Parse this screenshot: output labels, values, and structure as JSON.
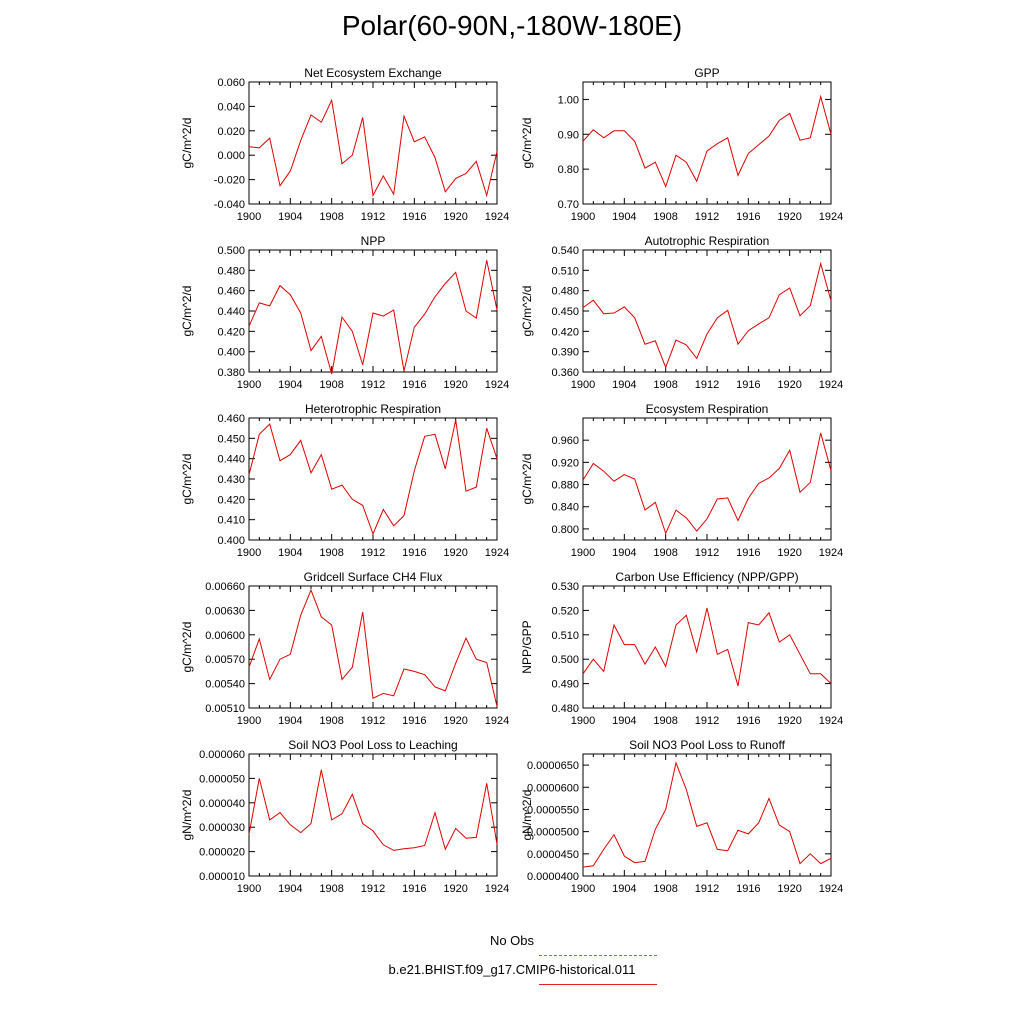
{
  "title": "Polar(60-90N,-180W-180E)",
  "legend": {
    "items": [
      {
        "label": "No Obs",
        "color": "#6b6bd6",
        "dash": true
      },
      {
        "label": "b.e21.BHIST.f09_g17.CMIP6-historical.011",
        "color": "#e02020",
        "dash": false
      }
    ]
  },
  "chart_data": [
    {
      "type": "line",
      "title": "Net Ecosystem Exchange",
      "ylabel": "gC/m^2/d",
      "xlabel": "",
      "ylim": [
        -0.04,
        0.06
      ],
      "yticks": [
        "-0.040",
        "-0.020",
        "0.000",
        "0.020",
        "0.040",
        "0.060"
      ],
      "xticks": [
        "1900",
        "1904",
        "1908",
        "1912",
        "1916",
        "1920",
        "1924"
      ],
      "series": [
        {
          "color": "#e00000",
          "x": [
            1900,
            1901,
            1902,
            1903,
            1904,
            1905,
            1906,
            1907,
            1908,
            1909,
            1910,
            1911,
            1912,
            1913,
            1914,
            1915,
            1916,
            1917,
            1918,
            1919,
            1920,
            1921,
            1922,
            1923,
            1924
          ],
          "y": [
            0.007,
            0.006,
            0.014,
            -0.025,
            -0.013,
            0.012,
            0.033,
            0.027,
            0.045,
            -0.007,
            0.0,
            0.031,
            -0.033,
            -0.017,
            -0.032,
            0.032,
            0.011,
            0.015,
            -0.002,
            -0.03,
            -0.019,
            -0.015,
            -0.005,
            -0.033,
            0.003
          ]
        }
      ]
    },
    {
      "type": "line",
      "title": "GPP",
      "ylabel": "gC/m^2/d",
      "xlabel": "",
      "ylim": [
        0.7,
        1.05
      ],
      "yticks": [
        "0.70",
        "0.80",
        "0.90",
        "1.00"
      ],
      "xticks": [
        "1900",
        "1904",
        "1908",
        "1912",
        "1916",
        "1920",
        "1924"
      ],
      "series": [
        {
          "color": "#e00000",
          "x": [
            1900,
            1901,
            1902,
            1903,
            1904,
            1905,
            1906,
            1907,
            1908,
            1909,
            1910,
            1911,
            1912,
            1913,
            1914,
            1915,
            1916,
            1917,
            1918,
            1919,
            1920,
            1921,
            1922,
            1923,
            1924
          ],
          "y": [
            0.88,
            0.913,
            0.89,
            0.91,
            0.91,
            0.88,
            0.803,
            0.82,
            0.75,
            0.84,
            0.82,
            0.765,
            0.852,
            0.873,
            0.89,
            0.782,
            0.845,
            0.87,
            0.895,
            0.94,
            0.96,
            0.883,
            0.89,
            1.008,
            0.9
          ]
        }
      ]
    },
    {
      "type": "line",
      "title": "NPP",
      "ylabel": "gC/m^2/d",
      "xlabel": "",
      "ylim": [
        0.38,
        0.5
      ],
      "yticks": [
        "0.380",
        "0.400",
        "0.420",
        "0.440",
        "0.460",
        "0.480",
        "0.500"
      ],
      "xticks": [
        "1900",
        "1904",
        "1908",
        "1912",
        "1916",
        "1920",
        "1924"
      ],
      "series": [
        {
          "color": "#e00000",
          "x": [
            1900,
            1901,
            1902,
            1903,
            1904,
            1905,
            1906,
            1907,
            1908,
            1909,
            1910,
            1911,
            1912,
            1913,
            1914,
            1915,
            1916,
            1917,
            1918,
            1919,
            1920,
            1921,
            1922,
            1923,
            1924
          ],
          "y": [
            0.425,
            0.448,
            0.445,
            0.465,
            0.456,
            0.438,
            0.401,
            0.415,
            0.378,
            0.434,
            0.42,
            0.387,
            0.438,
            0.435,
            0.441,
            0.381,
            0.424,
            0.437,
            0.454,
            0.467,
            0.478,
            0.44,
            0.433,
            0.49,
            0.441
          ]
        }
      ]
    },
    {
      "type": "line",
      "title": "Autotrophic Respiration",
      "ylabel": "gC/m^2/d",
      "xlabel": "",
      "ylim": [
        0.36,
        0.54
      ],
      "yticks": [
        "0.360",
        "0.390",
        "0.420",
        "0.450",
        "0.480",
        "0.510",
        "0.540"
      ],
      "xticks": [
        "1900",
        "1904",
        "1908",
        "1912",
        "1916",
        "1920",
        "1924"
      ],
      "series": [
        {
          "color": "#e00000",
          "x": [
            1900,
            1901,
            1902,
            1903,
            1904,
            1905,
            1906,
            1907,
            1908,
            1909,
            1910,
            1911,
            1912,
            1913,
            1914,
            1915,
            1916,
            1917,
            1918,
            1919,
            1920,
            1921,
            1922,
            1923,
            1924
          ],
          "y": [
            0.455,
            0.466,
            0.446,
            0.447,
            0.456,
            0.44,
            0.401,
            0.406,
            0.367,
            0.407,
            0.4,
            0.38,
            0.416,
            0.44,
            0.451,
            0.401,
            0.421,
            0.431,
            0.44,
            0.474,
            0.484,
            0.443,
            0.458,
            0.52,
            0.465
          ]
        }
      ]
    },
    {
      "type": "line",
      "title": "Heterotrophic Respiration",
      "ylabel": "gC/m^2/d",
      "xlabel": "",
      "ylim": [
        0.4,
        0.46
      ],
      "yticks": [
        "0.400",
        "0.410",
        "0.420",
        "0.430",
        "0.440",
        "0.450",
        "0.460"
      ],
      "xticks": [
        "1900",
        "1904",
        "1908",
        "1912",
        "1916",
        "1920",
        "1924"
      ],
      "series": [
        {
          "color": "#e00000",
          "x": [
            1900,
            1901,
            1902,
            1903,
            1904,
            1905,
            1906,
            1907,
            1908,
            1909,
            1910,
            1911,
            1912,
            1913,
            1914,
            1915,
            1916,
            1917,
            1918,
            1919,
            1920,
            1921,
            1922,
            1923,
            1924
          ],
          "y": [
            0.432,
            0.452,
            0.457,
            0.439,
            0.442,
            0.449,
            0.433,
            0.442,
            0.425,
            0.427,
            0.42,
            0.417,
            0.403,
            0.415,
            0.407,
            0.412,
            0.434,
            0.451,
            0.452,
            0.435,
            0.459,
            0.424,
            0.426,
            0.455,
            0.44
          ]
        }
      ]
    },
    {
      "type": "line",
      "title": "Ecosystem Respiration",
      "ylabel": "gC/m^2/d",
      "xlabel": "",
      "ylim": [
        0.78,
        1.0
      ],
      "yticks": [
        "0.800",
        "0.840",
        "0.880",
        "0.920",
        "0.960"
      ],
      "xticks": [
        "1900",
        "1904",
        "1908",
        "1912",
        "1916",
        "1920",
        "1924"
      ],
      "series": [
        {
          "color": "#e00000",
          "x": [
            1900,
            1901,
            1902,
            1903,
            1904,
            1905,
            1906,
            1907,
            1908,
            1909,
            1910,
            1911,
            1912,
            1913,
            1914,
            1915,
            1916,
            1917,
            1918,
            1919,
            1920,
            1921,
            1922,
            1923,
            1924
          ],
          "y": [
            0.888,
            0.918,
            0.904,
            0.886,
            0.898,
            0.89,
            0.834,
            0.848,
            0.792,
            0.834,
            0.82,
            0.796,
            0.818,
            0.854,
            0.856,
            0.815,
            0.855,
            0.882,
            0.892,
            0.909,
            0.942,
            0.866,
            0.884,
            0.973,
            0.905
          ]
        }
      ]
    },
    {
      "type": "line",
      "title": "Gridcell Surface CH4 Flux",
      "ylabel": "gC/m^2/d",
      "xlabel": "",
      "ylim": [
        0.0051,
        0.0066
      ],
      "yticks": [
        "0.00510",
        "0.00540",
        "0.00570",
        "0.00600",
        "0.00630",
        "0.00660"
      ],
      "xticks": [
        "1900",
        "1904",
        "1908",
        "1912",
        "1916",
        "1920",
        "1924"
      ],
      "series": [
        {
          "color": "#e00000",
          "x": [
            1900,
            1901,
            1902,
            1903,
            1904,
            1905,
            1906,
            1907,
            1908,
            1909,
            1910,
            1911,
            1912,
            1913,
            1914,
            1915,
            1916,
            1917,
            1918,
            1919,
            1920,
            1921,
            1922,
            1923,
            1924
          ],
          "y": [
            0.0056,
            0.00595,
            0.00545,
            0.0057,
            0.00576,
            0.00624,
            0.00655,
            0.00622,
            0.00612,
            0.00545,
            0.0056,
            0.00628,
            0.00522,
            0.00528,
            0.00525,
            0.00558,
            0.00555,
            0.00551,
            0.00536,
            0.00531,
            0.00565,
            0.00596,
            0.0057,
            0.00566,
            0.00512
          ]
        }
      ]
    },
    {
      "type": "line",
      "title": "Carbon Use Efficiency (NPP/GPP)",
      "ylabel": "NPP/GPP",
      "xlabel": "",
      "ylim": [
        0.48,
        0.53
      ],
      "yticks": [
        "0.480",
        "0.490",
        "0.500",
        "0.510",
        "0.520",
        "0.530"
      ],
      "xticks": [
        "1900",
        "1904",
        "1908",
        "1912",
        "1916",
        "1920",
        "1924"
      ],
      "series": [
        {
          "color": "#e00000",
          "x": [
            1900,
            1901,
            1902,
            1903,
            1904,
            1905,
            1906,
            1907,
            1908,
            1909,
            1910,
            1911,
            1912,
            1913,
            1914,
            1915,
            1916,
            1917,
            1918,
            1919,
            1920,
            1921,
            1922,
            1923,
            1924
          ],
          "y": [
            0.494,
            0.5,
            0.495,
            0.514,
            0.506,
            0.506,
            0.498,
            0.505,
            0.497,
            0.514,
            0.518,
            0.503,
            0.521,
            0.502,
            0.504,
            0.489,
            0.515,
            0.514,
            0.519,
            0.507,
            0.51,
            0.502,
            0.494,
            0.494,
            0.49
          ]
        }
      ]
    },
    {
      "type": "line",
      "title": "Soil NO3 Pool Loss to Leaching",
      "ylabel": "gN/m^2/d",
      "xlabel": "",
      "ylim": [
        1e-05,
        6e-05
      ],
      "yticks": [
        "0.000010",
        "0.000020",
        "0.000030",
        "0.000040",
        "0.000050",
        "0.000060"
      ],
      "xticks": [
        "1900",
        "1904",
        "1908",
        "1912",
        "1916",
        "1920",
        "1924"
      ],
      "series": [
        {
          "color": "#e00000",
          "x": [
            1900,
            1901,
            1902,
            1903,
            1904,
            1905,
            1906,
            1907,
            1908,
            1909,
            1910,
            1911,
            1912,
            1913,
            1914,
            1915,
            1916,
            1917,
            1918,
            1919,
            1920,
            1921,
            1922,
            1923,
            1924
          ],
          "y": [
            2.7e-05,
            5e-05,
            3.3e-05,
            3.6e-05,
            3.1e-05,
            2.78e-05,
            3.15e-05,
            5.35e-05,
            3.3e-05,
            3.55e-05,
            4.35e-05,
            3.15e-05,
            2.85e-05,
            2.28e-05,
            2.05e-05,
            2.12e-05,
            2.16e-05,
            2.25e-05,
            3.6e-05,
            2.1e-05,
            2.95e-05,
            2.55e-05,
            2.58e-05,
            4.8e-05,
            2.3e-05
          ]
        }
      ]
    },
    {
      "type": "line",
      "title": "Soil NO3 Pool Loss to Runoff",
      "ylabel": "gN/m^2/d",
      "xlabel": "",
      "ylim": [
        4e-05,
        6.75e-05
      ],
      "yticks": [
        "0.0000400",
        "0.0000450",
        "0.0000500",
        "0.0000550",
        "0.0000600",
        "0.0000650"
      ],
      "xticks": [
        "1900",
        "1904",
        "1908",
        "1912",
        "1916",
        "1920",
        "1924"
      ],
      "series": [
        {
          "color": "#e00000",
          "x": [
            1900,
            1901,
            1902,
            1903,
            1904,
            1905,
            1906,
            1907,
            1908,
            1909,
            1910,
            1911,
            1912,
            1913,
            1914,
            1915,
            1916,
            1917,
            1918,
            1919,
            1920,
            1921,
            1922,
            1923,
            1924
          ],
          "y": [
            4.2e-05,
            4.23e-05,
            4.6e-05,
            4.93e-05,
            4.45e-05,
            4.3e-05,
            4.33e-05,
            5.05e-05,
            5.5e-05,
            6.55e-05,
            5.95e-05,
            5.12e-05,
            5.2e-05,
            4.6e-05,
            4.57e-05,
            5.03e-05,
            4.95e-05,
            5.2e-05,
            5.75e-05,
            5.15e-05,
            5e-05,
            4.28e-05,
            4.5e-05,
            4.28e-05,
            4.4e-05
          ]
        }
      ]
    }
  ]
}
